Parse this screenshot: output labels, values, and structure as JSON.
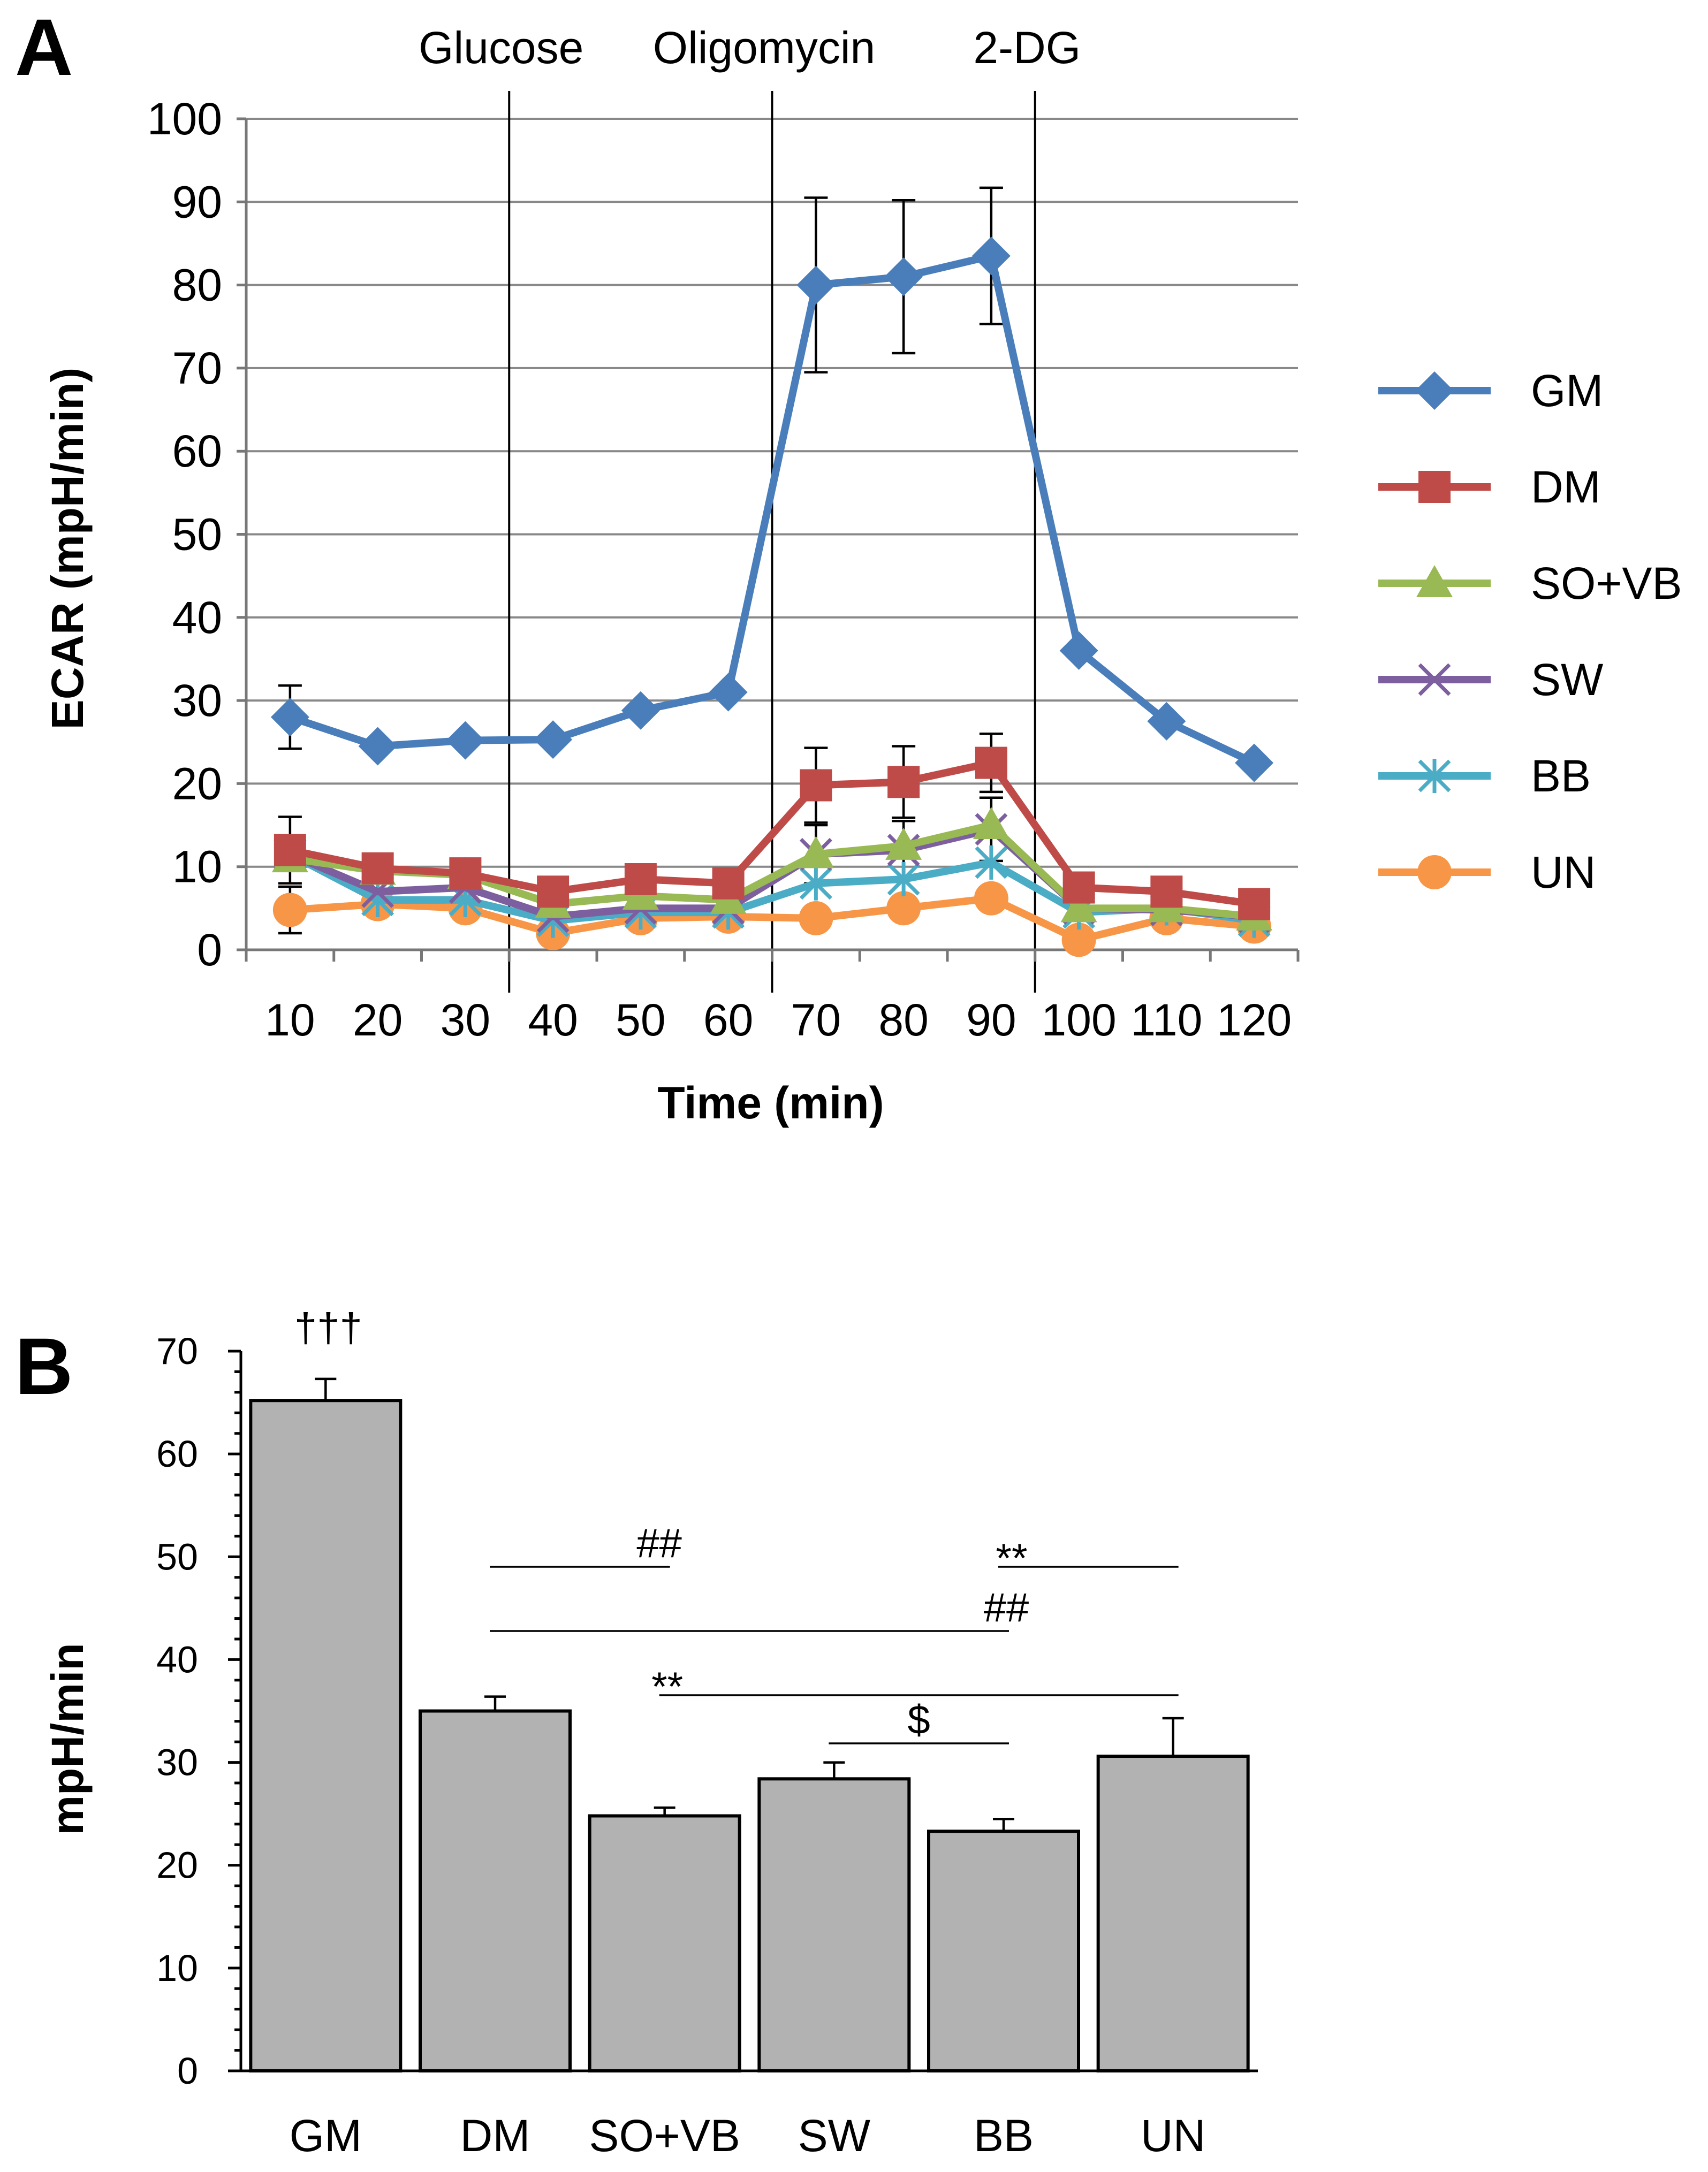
{
  "chart_data": [
    {
      "panel": "A",
      "type": "line",
      "title": "",
      "xlabel": "Time (min)",
      "ylabel": "ECAR (mpH/min)",
      "ylim": [
        0,
        100
      ],
      "y_ticks": [
        0,
        10,
        20,
        30,
        40,
        50,
        60,
        70,
        80,
        90,
        100
      ],
      "x": [
        10,
        20,
        30,
        40,
        50,
        60,
        70,
        80,
        90,
        100,
        110,
        120
      ],
      "x_tick_labels": [
        "10",
        "20",
        "30",
        "40",
        "50",
        "60",
        "70",
        "80",
        "90",
        "100",
        "110",
        "120"
      ],
      "grid": true,
      "legend_position": "right",
      "injections": [
        {
          "label": "Glucose",
          "after_x": 30
        },
        {
          "label": "Oligomycin",
          "after_x": 60
        },
        {
          "label": "2-DG",
          "after_x": 90
        }
      ],
      "series": [
        {
          "name": "GM",
          "color": "#4a7ebb",
          "marker": "diamond",
          "values": [
            28,
            24.5,
            25.2,
            25.3,
            28.8,
            31,
            80,
            81,
            83.5,
            36,
            27.5,
            22.5
          ],
          "errors": [
            3.8,
            null,
            null,
            null,
            null,
            null,
            10.5,
            9.2,
            8.2,
            null,
            null,
            null
          ]
        },
        {
          "name": "DM",
          "color": "#be4b48",
          "marker": "square",
          "values": [
            12,
            9.8,
            9.2,
            7,
            8.5,
            8,
            19.8,
            20.2,
            22.5,
            7.5,
            7,
            5.5
          ],
          "errors": [
            4,
            null,
            null,
            null,
            null,
            null,
            4.5,
            4.3,
            3.5,
            null,
            null,
            null
          ]
        },
        {
          "name": "SO+VB",
          "color": "#98b954",
          "marker": "triangle",
          "values": [
            11,
            9.5,
            9,
            5.5,
            6.5,
            6,
            11.5,
            12.5,
            15,
            5,
            5,
            4
          ],
          "errors": [
            null,
            null,
            null,
            null,
            null,
            null,
            null,
            null,
            null,
            null,
            null,
            null
          ]
        },
        {
          "name": "SW",
          "color": "#7d5fa0",
          "marker": "x",
          "values": [
            11.5,
            7,
            7.5,
            4,
            5,
            5,
            11.5,
            12,
            14.5,
            5,
            4.8,
            4
          ],
          "errors": [
            null,
            null,
            null,
            null,
            null,
            null,
            3.5,
            3.5,
            3.8,
            null,
            null,
            null
          ]
        },
        {
          "name": "BB",
          "color": "#4bacc6",
          "marker": "asterisk",
          "values": [
            11.5,
            6,
            6,
            3.5,
            4.5,
            4.5,
            8,
            8.5,
            10.5,
            4.5,
            5,
            3.5
          ],
          "errors": [
            null,
            null,
            null,
            null,
            null,
            null,
            null,
            null,
            null,
            null,
            null,
            null
          ]
        },
        {
          "name": "UN",
          "color": "#f79646",
          "marker": "circle",
          "values": [
            4.8,
            5.5,
            5,
            2,
            3.8,
            4,
            3.8,
            5,
            6.2,
            1.2,
            3.8,
            2.8
          ],
          "errors": [
            2.8,
            null,
            null,
            null,
            null,
            null,
            null,
            null,
            null,
            null,
            null,
            null
          ]
        }
      ]
    },
    {
      "panel": "B",
      "type": "bar",
      "title": "",
      "xlabel": "",
      "ylabel": "mpH/min",
      "ylim": [
        0,
        70
      ],
      "y_ticks": [
        0,
        10,
        20,
        30,
        40,
        50,
        60,
        70
      ],
      "categories": [
        "GM",
        "DM",
        "SO+VB",
        "SW",
        "BB",
        "UN"
      ],
      "values": [
        65.2,
        35,
        24.8,
        28.4,
        23.3,
        30.6
      ],
      "errors": [
        2.1,
        1.4,
        0.8,
        1.6,
        1.2,
        3.7
      ],
      "bar_color": "#b2b2b2",
      "top_annotation": {
        "category": "GM",
        "text": "†††"
      },
      "significance": [
        {
          "from": "DM",
          "to": "SO+VB",
          "label": "##"
        },
        {
          "from": "BB",
          "to": "UN",
          "label": "**"
        },
        {
          "from": "DM",
          "to": "BB",
          "label": "##"
        },
        {
          "from": "SO+VB",
          "to": "UN",
          "label": "**"
        },
        {
          "from": "SW",
          "to": "BB",
          "label": "$"
        }
      ]
    }
  ]
}
